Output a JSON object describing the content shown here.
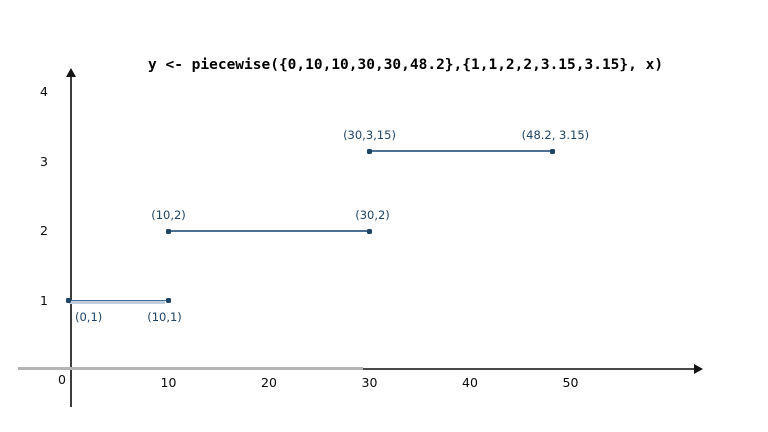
{
  "colors": {
    "annotation_navy": "#1e4565",
    "segment_line": "#4d7195",
    "segment_line_light": "#c2cedd",
    "axis_gray": "#b4b4b4",
    "axis_dark": "#4a4a4a",
    "tick_text": "#0a0a0a"
  },
  "chart_data": {
    "type": "line",
    "title": "y <- piecewise({0,10,10,30,30,48.2},{1,1,2,2,3.15,3.15}, x)",
    "xlabel": "",
    "ylabel": "",
    "xlim": [
      0,
      63
    ],
    "ylim": [
      0,
      4.3
    ],
    "grid": false,
    "legend": false,
    "x_ticks": [
      "10",
      "20",
      "30",
      "40",
      "50"
    ],
    "y_ticks": [
      "1",
      "2",
      "3",
      "4"
    ],
    "origin_label": "0",
    "segments": [
      {
        "x1": 0,
        "x2": 10,
        "y": 1,
        "label1": "(0,1)",
        "label2": "(10,1)",
        "labels_position": "below"
      },
      {
        "x1": 10,
        "x2": 30,
        "y": 2,
        "label1": "(10,2)",
        "label2": "(30,2)",
        "labels_position": "above"
      },
      {
        "x1": 30,
        "x2": 48.2,
        "y": 3.15,
        "label1": "(30,3,15)",
        "label2": "(48.2, 3.15)",
        "labels_position": "above"
      }
    ]
  }
}
